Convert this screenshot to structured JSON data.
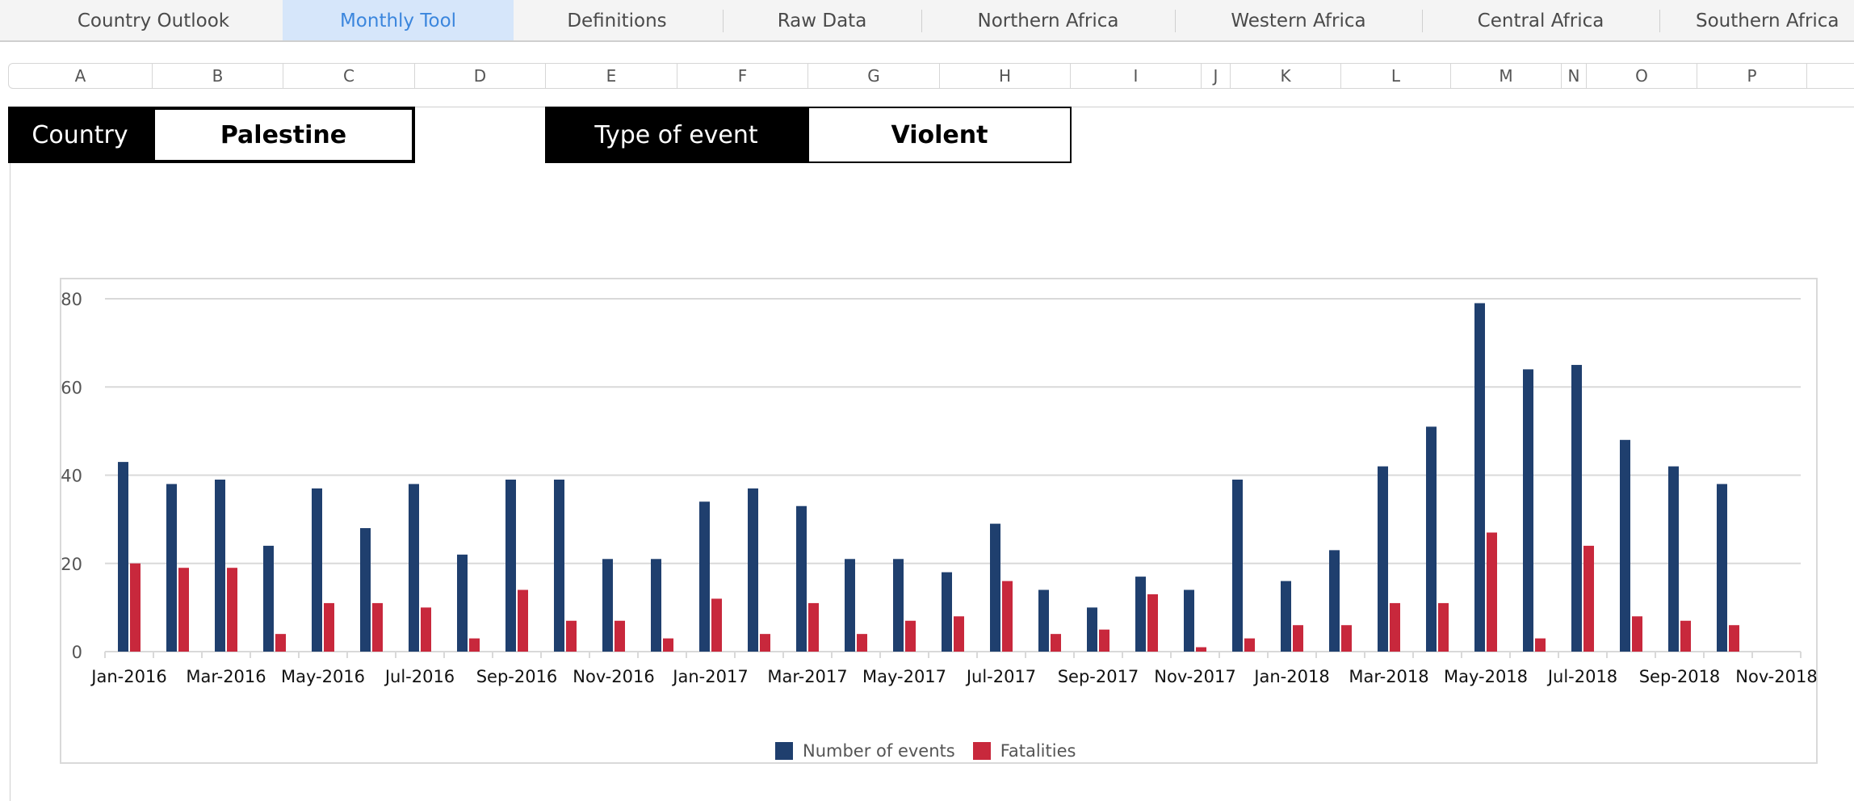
{
  "tabs": [
    {
      "label": "Country Outlook",
      "active": false
    },
    {
      "label": "Monthly Tool",
      "active": true
    },
    {
      "label": "Definitions",
      "active": false
    },
    {
      "label": "Raw Data",
      "active": false
    },
    {
      "label": "Northern Africa",
      "active": false
    },
    {
      "label": "Western Africa",
      "active": false
    },
    {
      "label": "Central Africa",
      "active": false
    },
    {
      "label": "Southern Africa",
      "active": false
    }
  ],
  "columns": [
    "A",
    "B",
    "C",
    "D",
    "E",
    "F",
    "G",
    "H",
    "I",
    "J",
    "K",
    "L",
    "M",
    "N",
    "O",
    "P"
  ],
  "selectors": {
    "country": {
      "label": "Country",
      "value": "Palestine"
    },
    "event_type": {
      "label": "Type of event",
      "value": "Violent"
    }
  },
  "colors": {
    "events": "#1f3f6e",
    "fatalities": "#c8283c",
    "active_tab_bg": "#d6e6fa",
    "active_tab_text": "#3b86dd"
  },
  "chart_data": {
    "type": "bar",
    "title": "",
    "xlabel": "",
    "ylabel": "",
    "ylim": [
      0,
      80
    ],
    "yticks": [
      0,
      20,
      40,
      60,
      80
    ],
    "grid": true,
    "legend_position": "bottom",
    "categories": [
      "Jan-2016",
      "Feb-2016",
      "Mar-2016",
      "Apr-2016",
      "May-2016",
      "Jun-2016",
      "Jul-2016",
      "Aug-2016",
      "Sep-2016",
      "Oct-2016",
      "Nov-2016",
      "Dec-2016",
      "Jan-2017",
      "Feb-2017",
      "Mar-2017",
      "Apr-2017",
      "May-2017",
      "Jun-2017",
      "Jul-2017",
      "Aug-2017",
      "Sep-2017",
      "Oct-2017",
      "Nov-2017",
      "Dec-2017",
      "Jan-2018",
      "Feb-2018",
      "Mar-2018",
      "Apr-2018",
      "May-2018",
      "Jun-2018",
      "Jul-2018",
      "Aug-2018",
      "Sep-2018",
      "Oct-2018",
      "Nov-2018"
    ],
    "x_tick_labels": [
      "Jan-2016",
      "Mar-2016",
      "May-2016",
      "Jul-2016",
      "Sep-2016",
      "Nov-2016",
      "Jan-2017",
      "Mar-2017",
      "May-2017",
      "Jul-2017",
      "Sep-2017",
      "Nov-2017",
      "Jan-2018",
      "Mar-2018",
      "May-2018",
      "Jul-2018",
      "Sep-2018",
      "Nov-2018"
    ],
    "series": [
      {
        "name": "Number of events",
        "values": [
          43,
          38,
          39,
          24,
          37,
          28,
          38,
          22,
          39,
          39,
          21,
          21,
          34,
          37,
          33,
          21,
          21,
          18,
          29,
          14,
          10,
          17,
          14,
          39,
          16,
          23,
          42,
          51,
          79,
          64,
          65,
          48,
          42,
          38,
          null
        ]
      },
      {
        "name": "Fatalities",
        "values": [
          20,
          19,
          19,
          4,
          11,
          11,
          10,
          3,
          14,
          7,
          7,
          3,
          12,
          4,
          11,
          4,
          7,
          8,
          16,
          4,
          5,
          13,
          1,
          3,
          6,
          6,
          11,
          11,
          27,
          3,
          24,
          8,
          7,
          6,
          null
        ]
      }
    ]
  }
}
